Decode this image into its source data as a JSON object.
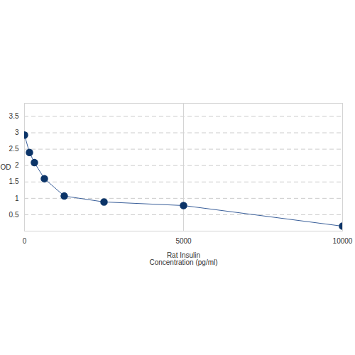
{
  "chart_data": {
    "type": "line",
    "x_label": "Rat Insulin\nConcentration (pg/ml)",
    "y_label": "OD",
    "x": [
      0,
      156,
      312,
      625,
      1250,
      2500,
      5000,
      10000
    ],
    "values": [
      2.93,
      2.4,
      2.09,
      1.6,
      1.07,
      0.89,
      0.78,
      0.15
    ],
    "color": "#0b3468",
    "marker": "circle",
    "line_style": "solid",
    "xlim": [
      0,
      10000
    ],
    "xticks": [
      0,
      5000,
      10000
    ],
    "ylim": [
      0,
      3.9
    ],
    "yticks": [
      0.5,
      1,
      1.5,
      2,
      2.5,
      3,
      3.5
    ],
    "grid": true
  }
}
